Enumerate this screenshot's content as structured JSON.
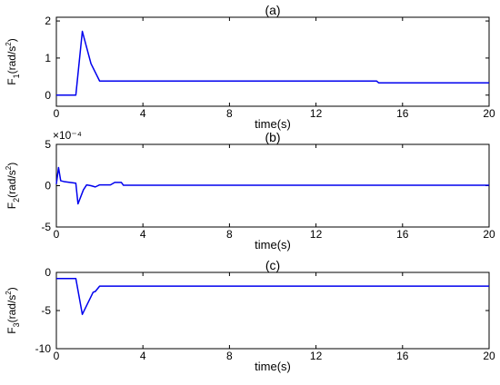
{
  "chart_data": [
    {
      "type": "line",
      "title": "(a)",
      "xlabel": "time(s)",
      "ylabel": {
        "base": "F",
        "sub": "1",
        "unit_start": "(rad/s",
        "unit_sup": "2",
        "unit_end": ")"
      },
      "xlim": [
        0,
        20
      ],
      "ylim": [
        -0.3,
        2.1
      ],
      "xticks": [
        0,
        4,
        8,
        12,
        16,
        20
      ],
      "yticks": [
        0,
        1,
        2
      ],
      "color": "#0000ee",
      "series": [
        {
          "x": [
            0,
            0.9,
            1.2,
            1.6,
            2.0,
            14.8,
            14.9,
            20
          ],
          "y": [
            0,
            0,
            1.72,
            0.85,
            0.38,
            0.38,
            0.33,
            0.33
          ]
        }
      ]
    },
    {
      "type": "line",
      "title": "(b)",
      "exponent_label": "×10⁻⁴",
      "xlabel": "time(s)",
      "ylabel": {
        "base": "F",
        "sub": "2",
        "unit_start": "(rad/s",
        "unit_sup": "2",
        "unit_end": ")"
      },
      "xlim": [
        0,
        20
      ],
      "ylim": [
        -5,
        5
      ],
      "xticks": [
        0,
        4,
        8,
        12,
        16,
        20
      ],
      "yticks": [
        -5,
        0,
        5
      ],
      "color": "#0000ee",
      "series": [
        {
          "x": [
            0,
            0.1,
            0.2,
            0.35,
            0.9,
            1.0,
            1.25,
            1.4,
            1.6,
            1.8,
            2.0,
            2.5,
            2.7,
            3.0,
            3.1,
            20
          ],
          "y": [
            0.2,
            2.2,
            0.6,
            0.5,
            0.3,
            -2.2,
            -0.5,
            0.1,
            0.0,
            -0.15,
            0.1,
            0.1,
            0.4,
            0.4,
            0.05,
            0.05
          ]
        }
      ]
    },
    {
      "type": "line",
      "title": "(c)",
      "xlabel": "time(s)",
      "ylabel": {
        "base": "F",
        "sub": "3",
        "unit_start": "(rad/s",
        "unit_sup": "2",
        "unit_end": ")"
      },
      "xlim": [
        0,
        20
      ],
      "ylim": [
        -10,
        0
      ],
      "xticks": [
        0,
        4,
        8,
        12,
        16,
        20
      ],
      "yticks": [
        0,
        -5,
        -10
      ],
      "color": "#0000ee",
      "series": [
        {
          "x": [
            0,
            0.9,
            1.2,
            1.7,
            1.8,
            2.0,
            20
          ],
          "y": [
            -0.8,
            -0.8,
            -5.5,
            -2.6,
            -2.5,
            -1.8,
            -1.8
          ]
        }
      ]
    }
  ]
}
